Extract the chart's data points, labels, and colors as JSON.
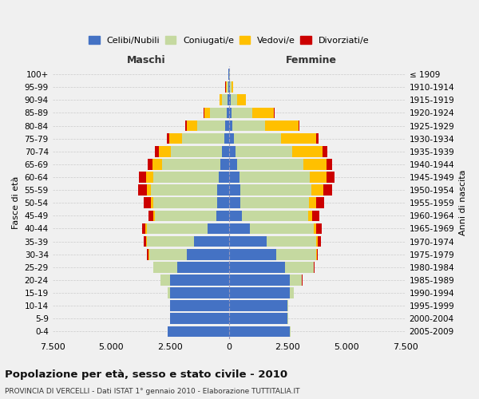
{
  "age_groups": [
    "0-4",
    "5-9",
    "10-14",
    "15-19",
    "20-24",
    "25-29",
    "30-34",
    "35-39",
    "40-44",
    "45-49",
    "50-54",
    "55-59",
    "60-64",
    "65-69",
    "70-74",
    "75-79",
    "80-84",
    "85-89",
    "90-94",
    "95-99",
    "100+"
  ],
  "birth_years": [
    "2005-2009",
    "2000-2004",
    "1995-1999",
    "1990-1994",
    "1985-1989",
    "1980-1984",
    "1975-1979",
    "1970-1974",
    "1965-1969",
    "1960-1964",
    "1955-1959",
    "1950-1954",
    "1945-1949",
    "1940-1944",
    "1935-1939",
    "1930-1934",
    "1925-1929",
    "1920-1924",
    "1915-1919",
    "1910-1914",
    "≤ 1909"
  ],
  "male": {
    "celibi": [
      2600,
      2500,
      2500,
      2500,
      2500,
      2200,
      1800,
      1500,
      900,
      550,
      500,
      500,
      430,
      350,
      280,
      200,
      150,
      100,
      60,
      30,
      10
    ],
    "coniugati": [
      5,
      5,
      10,
      100,
      400,
      1000,
      1600,
      2000,
      2600,
      2600,
      2700,
      2800,
      2800,
      2500,
      2200,
      1800,
      1200,
      700,
      250,
      80,
      20
    ],
    "vedovi": [
      0,
      0,
      0,
      0,
      5,
      10,
      20,
      30,
      50,
      80,
      120,
      200,
      300,
      400,
      500,
      550,
      450,
      250,
      80,
      30,
      5
    ],
    "divorziati": [
      0,
      0,
      0,
      5,
      10,
      20,
      50,
      100,
      150,
      200,
      300,
      350,
      300,
      200,
      150,
      80,
      50,
      20,
      10,
      5,
      2
    ]
  },
  "female": {
    "nubili": [
      2600,
      2500,
      2500,
      2600,
      2600,
      2400,
      2000,
      1600,
      900,
      550,
      500,
      500,
      450,
      350,
      280,
      200,
      150,
      100,
      60,
      30,
      10
    ],
    "coniugate": [
      5,
      5,
      20,
      150,
      500,
      1200,
      1700,
      2100,
      2700,
      2800,
      2900,
      3000,
      3000,
      2800,
      2400,
      2000,
      1400,
      900,
      300,
      80,
      20
    ],
    "vedove": [
      0,
      0,
      0,
      0,
      5,
      15,
      30,
      60,
      100,
      200,
      300,
      500,
      700,
      1000,
      1300,
      1500,
      1400,
      900,
      350,
      80,
      5
    ],
    "divorziate": [
      0,
      0,
      0,
      5,
      10,
      30,
      60,
      150,
      250,
      300,
      350,
      400,
      350,
      250,
      200,
      100,
      50,
      30,
      10,
      5,
      2
    ]
  },
  "colors": {
    "celibi": "#4472c4",
    "coniugati": "#c5d9a0",
    "vedovi": "#ffc000",
    "divorziati": "#cc0000"
  },
  "xlim": 7500,
  "xticklabels": [
    "7.500",
    "5.000",
    "2.500",
    "0",
    "2.500",
    "5.000",
    "7.500"
  ],
  "title": "Popolazione per età, sesso e stato civile - 2010",
  "subtitle": "PROVINCIA DI VERCELLI - Dati ISTAT 1° gennaio 2010 - Elaborazione TUTTITALIA.IT",
  "ylabel_left": "Fasce di età",
  "ylabel_right": "Anni di nascita",
  "header_left": "Maschi",
  "header_right": "Femmine",
  "legend_labels": [
    "Celibi/Nubili",
    "Coniugati/e",
    "Vedovi/e",
    "Divorziati/e"
  ],
  "bg_color": "#f0f0f0",
  "bar_height": 0.85
}
